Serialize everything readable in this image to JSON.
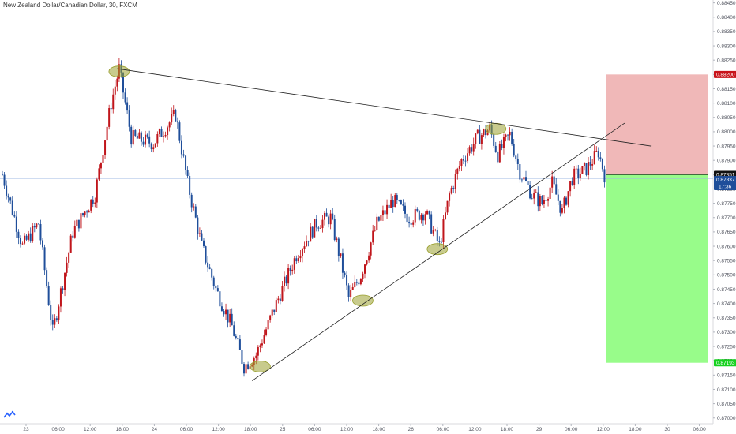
{
  "title": "New Zealand Dollar/Canadian Dollar, 30, FXCM",
  "logo_icon": "tradingview-logo-icon",
  "colors": {
    "up": "#c0151b",
    "down": "#1f4e9a",
    "stop_zone": "#f0b8b8",
    "target_zone": "#98fc8a",
    "stop_tag": "#c8131a",
    "target_tag": "#17d120",
    "current_tag": "#1f4e9a",
    "highlight": "#9aa030",
    "trendline": "#222222",
    "price_line": "#9fb9e3"
  },
  "chart_data": {
    "type": "candlestick",
    "symbol": "New Zealand Dollar/Canadian Dollar",
    "timeframe": "30",
    "source": "FXCM",
    "y_ticks": [
      "0.88450",
      "0.88400",
      "0.88350",
      "0.88300",
      "0.88250",
      "0.88200",
      "0.88150",
      "0.88100",
      "0.88050",
      "0.88000",
      "0.87950",
      "0.87900",
      "0.87850",
      "0.87800",
      "0.87750",
      "0.87700",
      "0.87650",
      "0.87600",
      "0.87550",
      "0.87500",
      "0.87450",
      "0.87400",
      "0.87350",
      "0.87300",
      "0.87250",
      "0.87200",
      "0.87150",
      "0.87100",
      "0.87050",
      "0.87000"
    ],
    "ylim": [
      0.8698,
      0.8846
    ],
    "x_ticks": [
      "23",
      "06:00",
      "12:00",
      "18:00",
      "24",
      "06:00",
      "12:00",
      "18:00",
      "25",
      "06:00",
      "12:00",
      "18:00",
      "26",
      "06:00",
      "12:00",
      "18:00",
      "29",
      "06:00",
      "12:00",
      "18:00",
      "30",
      "06:00"
    ],
    "price_tags": {
      "stop": "0.88200",
      "entry": "0.87851",
      "current": "0.87837",
      "countdown": "17:36",
      "target": "0.87193"
    },
    "anchors": [
      {
        "x": 0,
        "y": 0.8785
      },
      {
        "x": 10,
        "y": 0.876
      },
      {
        "x": 18,
        "y": 0.8768
      },
      {
        "x": 25,
        "y": 0.873
      },
      {
        "x": 35,
        "y": 0.8765
      },
      {
        "x": 46,
        "y": 0.8778
      },
      {
        "x": 54,
        "y": 0.881
      },
      {
        "x": 58,
        "y": 0.8822
      },
      {
        "x": 64,
        "y": 0.8798
      },
      {
        "x": 75,
        "y": 0.8796
      },
      {
        "x": 86,
        "y": 0.8806
      },
      {
        "x": 92,
        "y": 0.8782
      },
      {
        "x": 99,
        "y": 0.876
      },
      {
        "x": 106,
        "y": 0.8745
      },
      {
        "x": 114,
        "y": 0.8732
      },
      {
        "x": 120,
        "y": 0.8718
      },
      {
        "x": 126,
        "y": 0.8722
      },
      {
        "x": 136,
        "y": 0.874
      },
      {
        "x": 146,
        "y": 0.8757
      },
      {
        "x": 156,
        "y": 0.8768
      },
      {
        "x": 163,
        "y": 0.877
      },
      {
        "x": 168,
        "y": 0.8755
      },
      {
        "x": 172,
        "y": 0.8742
      },
      {
        "x": 178,
        "y": 0.875
      },
      {
        "x": 186,
        "y": 0.8768
      },
      {
        "x": 194,
        "y": 0.8776
      },
      {
        "x": 202,
        "y": 0.877
      },
      {
        "x": 210,
        "y": 0.8772
      },
      {
        "x": 217,
        "y": 0.876
      },
      {
        "x": 222,
        "y": 0.8778
      },
      {
        "x": 228,
        "y": 0.879
      },
      {
        "x": 236,
        "y": 0.8798
      },
      {
        "x": 242,
        "y": 0.8801
      },
      {
        "x": 246,
        "y": 0.8792
      },
      {
        "x": 252,
        "y": 0.8799
      },
      {
        "x": 257,
        "y": 0.8786
      },
      {
        "x": 263,
        "y": 0.8778
      },
      {
        "x": 268,
        "y": 0.8775
      },
      {
        "x": 273,
        "y": 0.8782
      },
      {
        "x": 278,
        "y": 0.8772
      },
      {
        "x": 283,
        "y": 0.8784
      },
      {
        "x": 290,
        "y": 0.8787
      },
      {
        "x": 296,
        "y": 0.8793
      },
      {
        "x": 299,
        "y": 0.8785
      }
    ],
    "trendlines": [
      {
        "from": [
          57,
          0.8822
        ],
        "to": [
          322,
          0.8795
        ]
      },
      {
        "from": [
          124,
          0.8713
        ],
        "to": [
          309,
          0.8803
        ]
      }
    ],
    "highlights": [
      {
        "x": 58,
        "y": 0.8821
      },
      {
        "x": 245,
        "y": 0.8801
      },
      {
        "x": 128,
        "y": 0.8718
      },
      {
        "x": 179,
        "y": 0.8741
      },
      {
        "x": 216,
        "y": 0.8759
      }
    ],
    "position": {
      "type": "short",
      "entry": 0.87851,
      "stop": 0.882,
      "target": 0.87193,
      "from_bar": 299
    }
  }
}
